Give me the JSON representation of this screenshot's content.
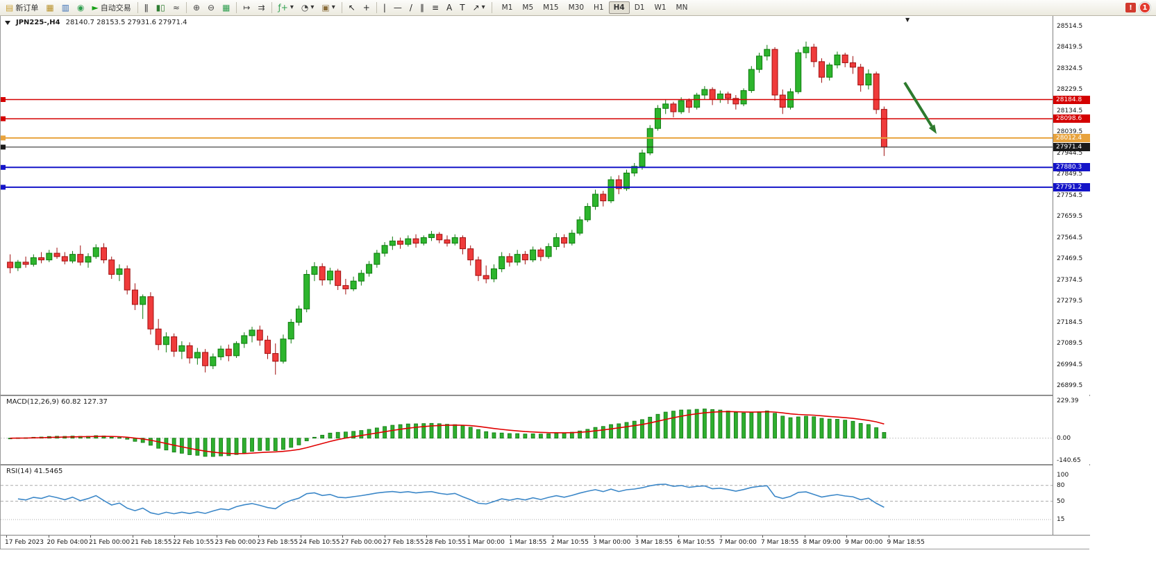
{
  "toolbar": {
    "new_order_label": "新订单",
    "autotrading_label": "自动交易",
    "buttons": [
      {
        "name": "new-order",
        "icon": "new-order-icon",
        "glyph": "▤",
        "color": "#caa23a",
        "label": "新订单"
      },
      {
        "name": "open-chart",
        "icon": "new-chart-icon",
        "glyph": "▦",
        "color": "#b8912a"
      },
      {
        "name": "profiles",
        "icon": "profiles-icon",
        "glyph": "▥",
        "color": "#3b6fb5"
      },
      {
        "name": "data-refresh",
        "icon": "refresh-icon",
        "glyph": "◉",
        "color": "#2e9e4f"
      },
      {
        "name": "autotrading",
        "icon": "autotrading-play-icon",
        "glyph": "►",
        "color": "#18a018",
        "label": "自动交易"
      },
      {
        "sep": true
      },
      {
        "name": "bars-mode",
        "icon": "bars-chart-icon",
        "glyph": "ǁ",
        "color": "#444444"
      },
      {
        "name": "candles-mode",
        "icon": "candlestick-chart-icon",
        "glyph": "▮▯",
        "color": "#2e7d32"
      },
      {
        "name": "line-mode",
        "icon": "line-chart-icon",
        "glyph": "≈",
        "color": "#444444"
      },
      {
        "sep": true
      },
      {
        "name": "zoom-in",
        "icon": "zoom-in-icon",
        "glyph": "⊕",
        "color": "#444444"
      },
      {
        "name": "zoom-out",
        "icon": "zoom-out-icon",
        "glyph": "⊖",
        "color": "#444444"
      },
      {
        "name": "tile-windows",
        "icon": "tile-windows-icon",
        "glyph": "▦",
        "color": "#2e9e4f"
      },
      {
        "sep": true
      },
      {
        "name": "auto-scroll",
        "icon": "auto-scroll-icon",
        "glyph": "↦",
        "color": "#444444"
      },
      {
        "name": "chart-shift",
        "icon": "chart-shift-icon",
        "glyph": "⇉",
        "color": "#444444"
      },
      {
        "sep": true
      },
      {
        "name": "indicators",
        "icon": "indicators-icon",
        "glyph": "ƒ+",
        "color": "#2e9e4f",
        "caret": true
      },
      {
        "name": "periods",
        "icon": "clock-icon",
        "glyph": "◔",
        "color": "#444444",
        "caret": true
      },
      {
        "name": "templates",
        "icon": "template-icon",
        "glyph": "▣",
        "color": "#8a6d3b",
        "caret": true
      },
      {
        "sep": true
      },
      {
        "name": "cursor",
        "icon": "cursor-icon",
        "glyph": "↖",
        "color": "#222222"
      },
      {
        "name": "crosshair",
        "icon": "crosshair-icon",
        "glyph": "+",
        "color": "#222222"
      },
      {
        "sep": true
      },
      {
        "name": "vertical-line",
        "icon": "vertical-line-icon",
        "glyph": "|",
        "color": "#222222"
      },
      {
        "name": "horizontal-line",
        "icon": "horizontal-line-icon",
        "glyph": "—",
        "color": "#222222"
      },
      {
        "name": "trendline",
        "icon": "trendline-icon",
        "glyph": "/",
        "color": "#222222"
      },
      {
        "name": "equidistant-channel",
        "icon": "channel-icon",
        "glyph": "∥",
        "color": "#222222"
      },
      {
        "name": "fibonacci",
        "icon": "fibonacci-icon",
        "glyph": "≡",
        "color": "#222222"
      },
      {
        "name": "text",
        "icon": "text-icon",
        "glyph": "A",
        "color": "#222222"
      },
      {
        "name": "text-label",
        "icon": "label-icon",
        "glyph": "T",
        "color": "#222222"
      },
      {
        "name": "arrows",
        "icon": "arrow-objects-icon",
        "glyph": "↗",
        "color": "#222222",
        "caret": true
      },
      {
        "sep": true
      }
    ],
    "timeframes": [
      "M1",
      "M5",
      "M15",
      "M30",
      "H1",
      "H4",
      "D1",
      "W1",
      "MN"
    ],
    "active_timeframe": "H4",
    "notification_count": "1"
  },
  "chart_data": {
    "type": "candlestick",
    "symbol": "JPN225-",
    "period": "H4",
    "title_text": "JPN225-,H4",
    "ohlc_text": "28140.7 28153.5 27931.6 27971.4",
    "last_bar": {
      "open": 28140.7,
      "high": 28153.5,
      "low": 27931.6,
      "close": 27971.4
    },
    "ylim": [
      26860,
      28560
    ],
    "y_ticks": [
      28514.5,
      28419.5,
      28324.5,
      28229.5,
      28134.5,
      28039.5,
      27944.5,
      27849.5,
      27754.5,
      27659.5,
      27564.5,
      27469.5,
      27374.5,
      27279.5,
      27184.5,
      27089.5,
      26994.5,
      26899.5
    ],
    "price_lines": [
      {
        "value": 28184.8,
        "color": "#d40000",
        "width": 1.5,
        "role": "resistance-line"
      },
      {
        "value": 28098.6,
        "color": "#d40000",
        "width": 1.5,
        "role": "resistance-line"
      },
      {
        "value": 28012.4,
        "color": "#e8a33d",
        "width": 2,
        "role": "support-line"
      },
      {
        "value": 27971.4,
        "color": "#1a1a1a",
        "width": 1,
        "role": "current-price"
      },
      {
        "value": 27880.3,
        "color": "#1414c8",
        "width": 2,
        "role": "support-line"
      },
      {
        "value": 27791.2,
        "color": "#1414c8",
        "width": 2,
        "role": "support-line"
      }
    ],
    "colors": {
      "up_fill": "#2db52d",
      "up_stroke": "#0c7a0c",
      "down_fill": "#ef3b3b",
      "down_stroke": "#a01010",
      "macd_hist": "#2fae2f",
      "macd_hist_stroke": "#117711",
      "macd_signal": "#e00000",
      "rsi_line": "#3b87c8",
      "arrow": "#2d7a2d"
    },
    "candles": [
      [
        27455,
        27490,
        27405,
        27430
      ],
      [
        27430,
        27465,
        27415,
        27455
      ],
      [
        27455,
        27480,
        27430,
        27445
      ],
      [
        27445,
        27490,
        27435,
        27475
      ],
      [
        27475,
        27500,
        27450,
        27465
      ],
      [
        27465,
        27510,
        27455,
        27495
      ],
      [
        27495,
        27520,
        27470,
        27480
      ],
      [
        27480,
        27500,
        27445,
        27460
      ],
      [
        27460,
        27505,
        27450,
        27490
      ],
      [
        27490,
        27530,
        27440,
        27455
      ],
      [
        27455,
        27495,
        27430,
        27480
      ],
      [
        27480,
        27535,
        27470,
        27520
      ],
      [
        27520,
        27540,
        27450,
        27465
      ],
      [
        27465,
        27480,
        27380,
        27400
      ],
      [
        27400,
        27445,
        27370,
        27425
      ],
      [
        27425,
        27440,
        27310,
        27330
      ],
      [
        27330,
        27360,
        27240,
        27265
      ],
      [
        27265,
        27310,
        27200,
        27300
      ],
      [
        27300,
        27320,
        27130,
        27155
      ],
      [
        27155,
        27200,
        27060,
        27085
      ],
      [
        27085,
        27140,
        27050,
        27120
      ],
      [
        27120,
        27135,
        27030,
        27055
      ],
      [
        27055,
        27100,
        27020,
        27080
      ],
      [
        27080,
        27095,
        27000,
        27025
      ],
      [
        27025,
        27070,
        26995,
        27050
      ],
      [
        27050,
        27065,
        26960,
        26990
      ],
      [
        26990,
        27045,
        26975,
        27030
      ],
      [
        27030,
        27080,
        27015,
        27065
      ],
      [
        27065,
        27085,
        27010,
        27035
      ],
      [
        27035,
        27100,
        27025,
        27090
      ],
      [
        27090,
        27140,
        27070,
        27125
      ],
      [
        27125,
        27165,
        27095,
        27150
      ],
      [
        27150,
        27170,
        27080,
        27105
      ],
      [
        27105,
        27125,
        27020,
        27045
      ],
      [
        27045,
        27090,
        26950,
        27010
      ],
      [
        27010,
        27130,
        27000,
        27110
      ],
      [
        27110,
        27200,
        27090,
        27185
      ],
      [
        27185,
        27260,
        27170,
        27245
      ],
      [
        27245,
        27420,
        27230,
        27400
      ],
      [
        27400,
        27455,
        27370,
        27435
      ],
      [
        27435,
        27450,
        27350,
        27375
      ],
      [
        27375,
        27430,
        27355,
        27415
      ],
      [
        27415,
        27425,
        27330,
        27350
      ],
      [
        27350,
        27380,
        27310,
        27335
      ],
      [
        27335,
        27390,
        27325,
        27370
      ],
      [
        27370,
        27420,
        27350,
        27405
      ],
      [
        27405,
        27460,
        27390,
        27445
      ],
      [
        27445,
        27510,
        27430,
        27495
      ],
      [
        27495,
        27545,
        27480,
        27530
      ],
      [
        27530,
        27570,
        27510,
        27550
      ],
      [
        27550,
        27565,
        27515,
        27535
      ],
      [
        27535,
        27575,
        27525,
        27560
      ],
      [
        27560,
        27580,
        27520,
        27540
      ],
      [
        27540,
        27575,
        27530,
        27565
      ],
      [
        27565,
        27595,
        27550,
        27580
      ],
      [
        27580,
        27590,
        27540,
        27555
      ],
      [
        27555,
        27575,
        27525,
        27540
      ],
      [
        27540,
        27580,
        27530,
        27565
      ],
      [
        27565,
        27575,
        27490,
        27515
      ],
      [
        27515,
        27530,
        27440,
        27465
      ],
      [
        27465,
        27480,
        27370,
        27395
      ],
      [
        27395,
        27440,
        27360,
        27380
      ],
      [
        27380,
        27445,
        27365,
        27425
      ],
      [
        27425,
        27500,
        27410,
        27480
      ],
      [
        27480,
        27495,
        27435,
        27455
      ],
      [
        27455,
        27510,
        27440,
        27490
      ],
      [
        27490,
        27505,
        27445,
        27465
      ],
      [
        27465,
        27525,
        27455,
        27510
      ],
      [
        27510,
        27520,
        27460,
        27480
      ],
      [
        27480,
        27540,
        27470,
        27525
      ],
      [
        27525,
        27585,
        27510,
        27565
      ],
      [
        27565,
        27580,
        27520,
        27540
      ],
      [
        27540,
        27600,
        27530,
        27585
      ],
      [
        27585,
        27660,
        27575,
        27645
      ],
      [
        27645,
        27720,
        27635,
        27705
      ],
      [
        27705,
        27780,
        27690,
        27760
      ],
      [
        27760,
        27775,
        27705,
        27730
      ],
      [
        27730,
        27840,
        27720,
        27825
      ],
      [
        27825,
        27845,
        27760,
        27785
      ],
      [
        27785,
        27870,
        27775,
        27855
      ],
      [
        27855,
        27900,
        27840,
        27885
      ],
      [
        27885,
        27960,
        27870,
        27945
      ],
      [
        27945,
        28070,
        27935,
        28055
      ],
      [
        28055,
        28160,
        28045,
        28145
      ],
      [
        28145,
        28185,
        28120,
        28165
      ],
      [
        28165,
        28175,
        28105,
        28130
      ],
      [
        28130,
        28195,
        28120,
        28180
      ],
      [
        28180,
        28190,
        28125,
        28150
      ],
      [
        28150,
        28215,
        28140,
        28205
      ],
      [
        28205,
        28245,
        28185,
        28230
      ],
      [
        28230,
        28240,
        28160,
        28185
      ],
      [
        28185,
        28225,
        28170,
        28210
      ],
      [
        28210,
        28220,
        28165,
        28190
      ],
      [
        28190,
        28205,
        28140,
        28165
      ],
      [
        28165,
        28235,
        28155,
        28225
      ],
      [
        28225,
        28335,
        28215,
        28320
      ],
      [
        28320,
        28395,
        28305,
        28380
      ],
      [
        28380,
        28430,
        28360,
        28410
      ],
      [
        28410,
        28420,
        28180,
        28205
      ],
      [
        28205,
        28230,
        28120,
        28150
      ],
      [
        28150,
        28235,
        28140,
        28220
      ],
      [
        28220,
        28410,
        28210,
        28395
      ],
      [
        28395,
        28445,
        28370,
        28420
      ],
      [
        28420,
        28435,
        28330,
        28355
      ],
      [
        28355,
        28370,
        28260,
        28285
      ],
      [
        28285,
        28350,
        28270,
        28340
      ],
      [
        28340,
        28400,
        28325,
        28385
      ],
      [
        28385,
        28395,
        28330,
        28350
      ],
      [
        28350,
        28380,
        28300,
        28330
      ],
      [
        28330,
        28345,
        28220,
        28250
      ],
      [
        28250,
        28320,
        28230,
        28300
      ],
      [
        28300,
        28310,
        28120,
        28140
      ],
      [
        28140.7,
        28153.5,
        27931.6,
        27971.4
      ]
    ],
    "x_labels": [
      "17 Feb 2023",
      "20 Feb 04:00",
      "21 Feb 00:00",
      "21 Feb 18:55",
      "22 Feb 10:55",
      "23 Feb 00:00",
      "23 Feb 18:55",
      "24 Feb 10:55",
      "27 Feb 00:00",
      "27 Feb 18:55",
      "28 Feb 10:55",
      "1 Mar 00:00",
      "1 Mar 18:55",
      "2 Mar 10:55",
      "3 Mar 00:00",
      "3 Mar 18:55",
      "6 Mar 10:55",
      "7 Mar 00:00",
      "7 Mar 18:55",
      "8 Mar 09:00",
      "9 Mar 00:00",
      "9 Mar 18:55"
    ],
    "macd_panel": {
      "label": "MACD(12,26,9) 60.82 127.37",
      "params": [
        12,
        26,
        9
      ],
      "main_value": 60.82,
      "signal_value": 127.37,
      "axis_labels": [
        "229.39",
        "0.00",
        "-140.65"
      ],
      "range": [
        -160,
        260
      ]
    },
    "rsi_panel": {
      "label": "RSI(14) 41.5465",
      "period": 14,
      "value": 41.5465,
      "axis_labels": [
        "100",
        "80",
        "50",
        "15"
      ],
      "levels": [
        80,
        50,
        15
      ],
      "range": [
        -14,
        118
      ]
    },
    "annotation_arrow": {
      "direction": "down-right"
    }
  }
}
